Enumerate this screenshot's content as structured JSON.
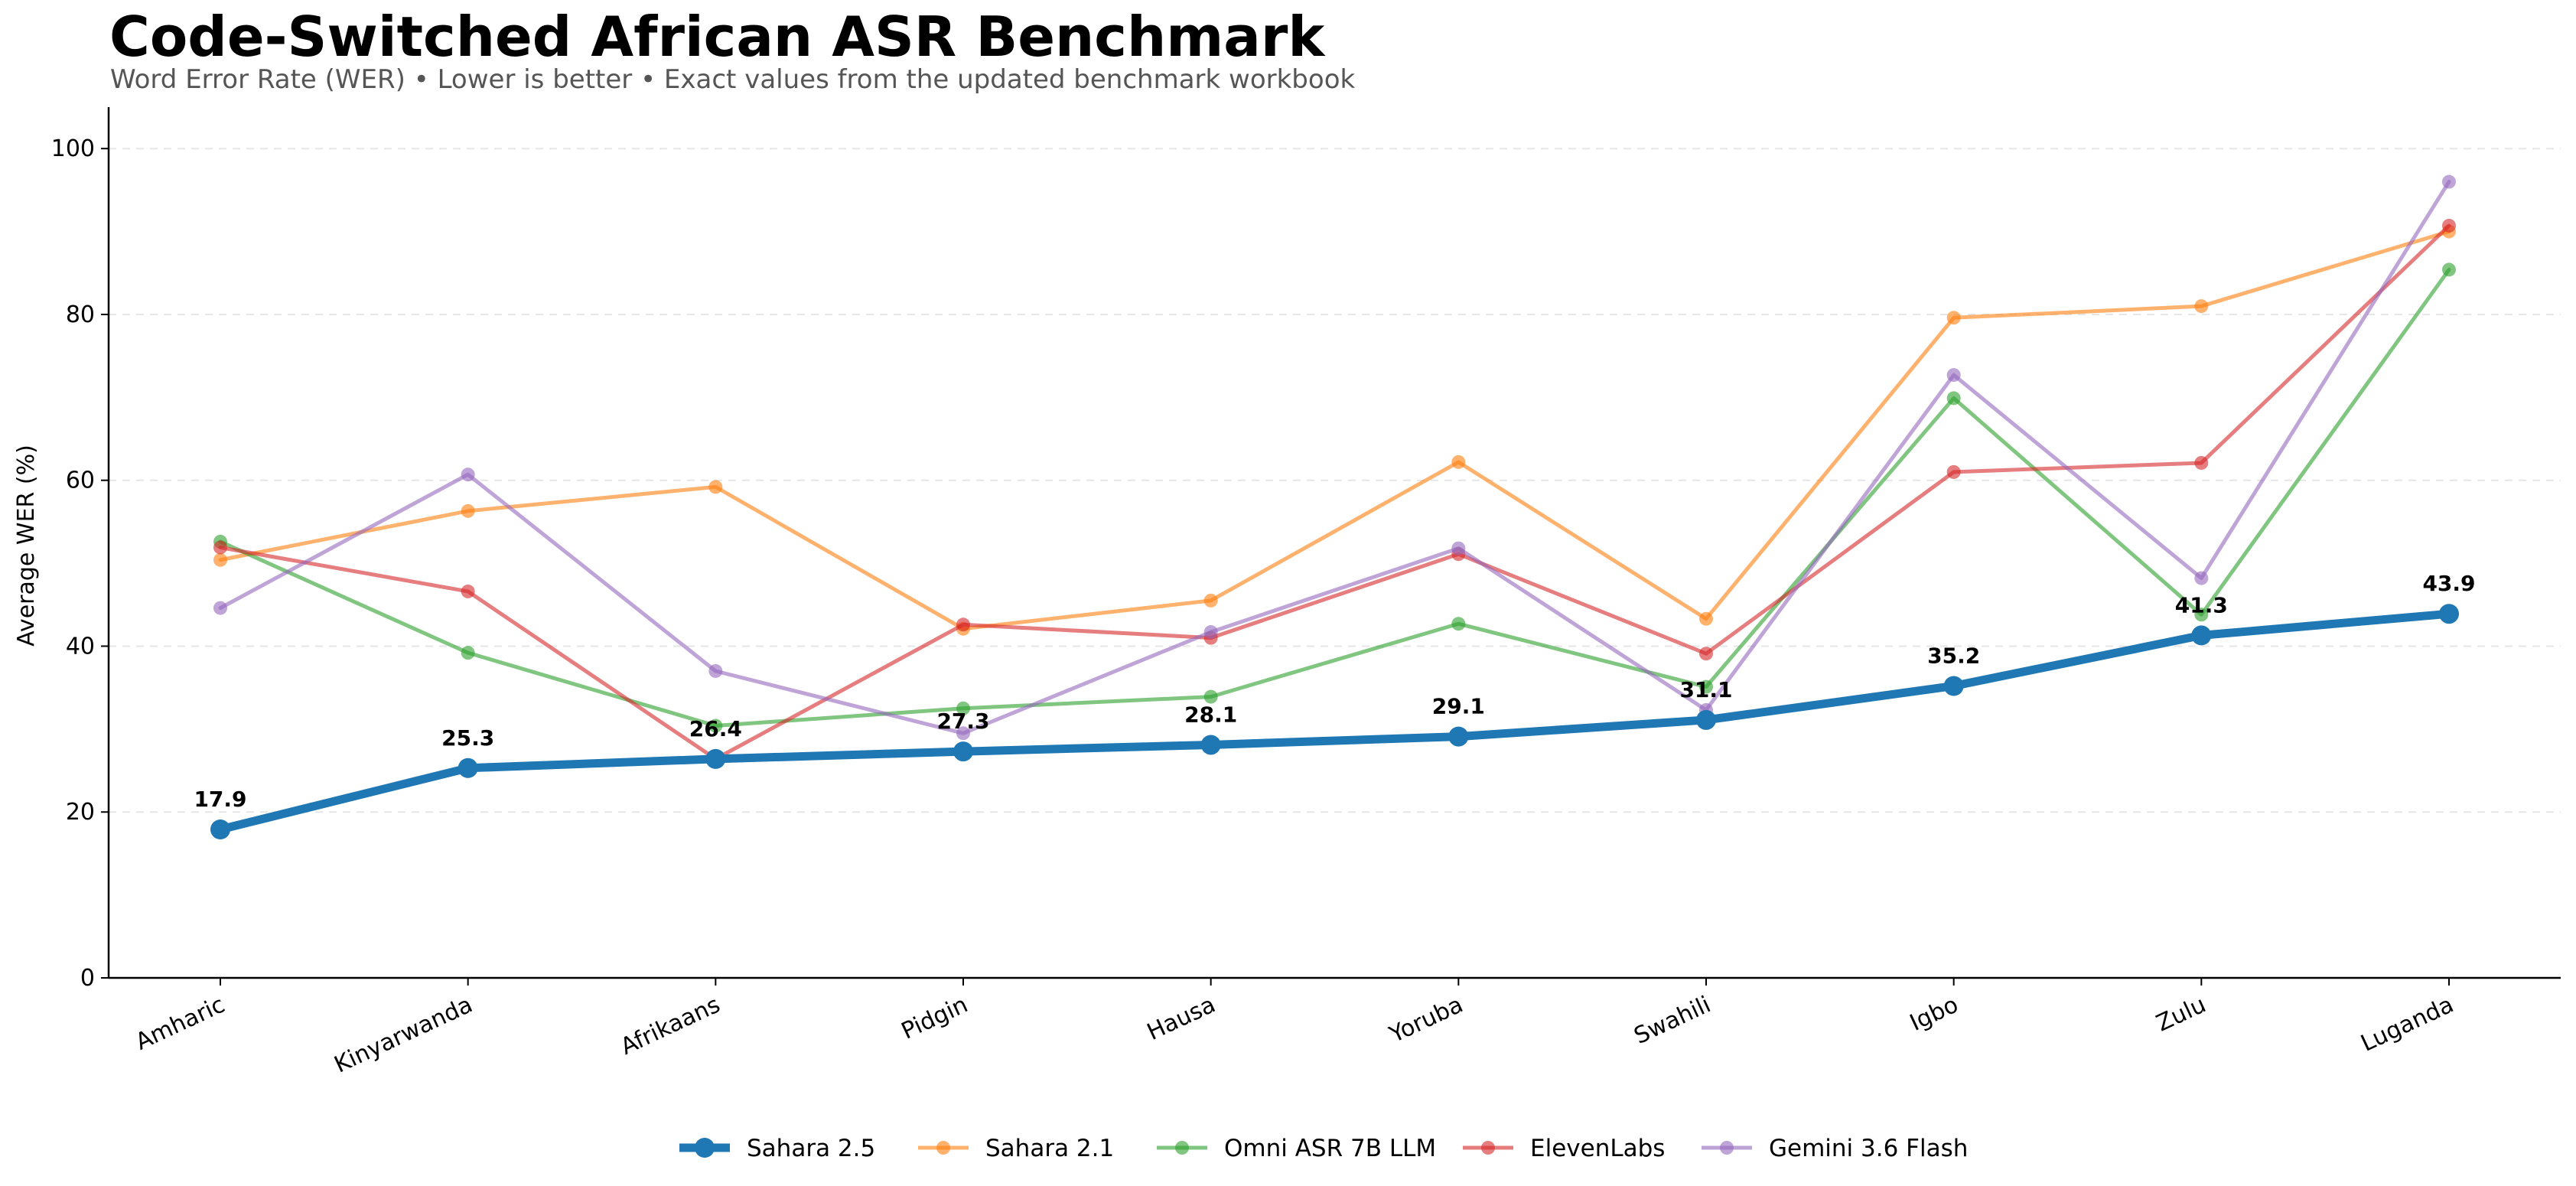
{
  "header": {
    "title": "Code-Switched African ASR Benchmark",
    "subtitle": "Word Error Rate (WER) • Lower is better • Exact values from the updated benchmark workbook"
  },
  "chart_data": {
    "type": "line",
    "title": "Code-Switched African ASR Benchmark",
    "subtitle": "Word Error Rate (WER) • Lower is better • Exact values from the updated benchmark workbook",
    "xlabel": "",
    "ylabel": "Average WER (%)",
    "ylim": [
      0,
      105
    ],
    "yticks": [
      0,
      20,
      40,
      60,
      80,
      100
    ],
    "grid": "horizontal dashed",
    "legend_position": "bottom-center",
    "categories": [
      "Amharic",
      "Kinyarwanda",
      "Afrikaans",
      "Pidgin",
      "Hausa",
      "Yoruba",
      "Swahili",
      "Igbo",
      "Zulu",
      "Luganda"
    ],
    "series": [
      {
        "name": "Sahara 2.1",
        "color": "#ff7f0e",
        "values": [
          50.4,
          56.3,
          59.2,
          42.1,
          45.5,
          62.2,
          43.3,
          79.6,
          81.0,
          90.0
        ]
      },
      {
        "name": "Omni ASR 7B LLM",
        "color": "#2ca02c",
        "values": [
          52.6,
          39.2,
          30.4,
          32.5,
          33.9,
          42.7,
          35.1,
          69.9,
          43.8,
          85.4
        ]
      },
      {
        "name": "ElevenLabs",
        "color": "#d62728",
        "values": [
          51.9,
          46.6,
          26.4,
          42.6,
          41.0,
          51.1,
          39.1,
          61.0,
          62.1,
          90.7
        ]
      },
      {
        "name": "Gemini 3.6 Flash",
        "color": "#9467bd",
        "values": [
          44.6,
          60.7,
          37.0,
          29.5,
          41.7,
          51.8,
          32.3,
          72.7,
          48.2,
          96.0
        ]
      },
      {
        "name": "Sahara 2.5",
        "color": "#1f77b4",
        "highlight": true,
        "values": [
          17.9,
          25.3,
          26.4,
          27.3,
          28.1,
          29.1,
          31.1,
          35.2,
          41.3,
          43.9
        ],
        "labels": [
          "17.9",
          "25.3",
          "26.4",
          "27.3",
          "28.1",
          "29.1",
          "31.1",
          "35.2",
          "41.3",
          "43.9"
        ]
      }
    ],
    "legend_order": [
      "Sahara 2.5",
      "Sahara 2.1",
      "Omni ASR 7B LLM",
      "ElevenLabs",
      "Gemini 3.6 Flash"
    ]
  }
}
